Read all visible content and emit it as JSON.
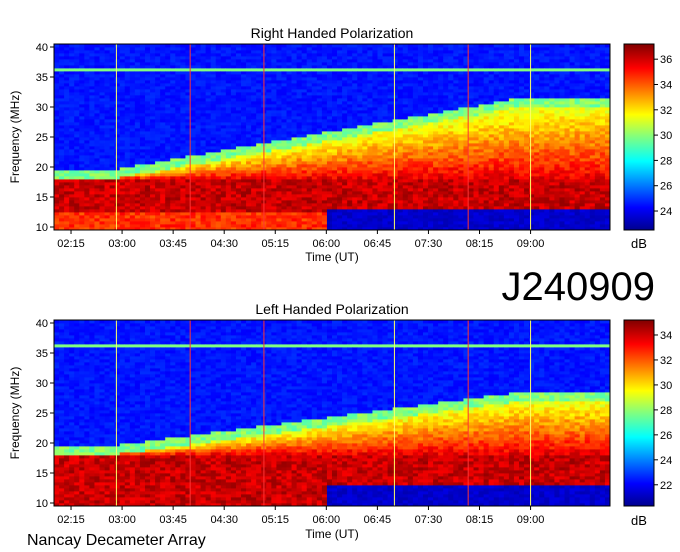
{
  "station_id": "J240909",
  "footer": "Nancay Decameter Array",
  "chart_data": [
    {
      "type": "heatmap",
      "title": "Right Handed Polarization",
      "xlabel": "Time (UT)",
      "ylabel": "Frequency (MHz)",
      "ylim": [
        9.5,
        40.5
      ],
      "xlim_minutes_utc": [
        120,
        610
      ],
      "x_ticks": [
        "02:15",
        "03:00",
        "03:45",
        "04:30",
        "05:15",
        "06:00",
        "06:45",
        "07:30",
        "08:15",
        "09:00"
      ],
      "y_ticks": [
        10,
        15,
        20,
        25,
        30,
        35,
        40
      ],
      "colorbar": {
        "unit": "dB",
        "min": 22.5,
        "max": 37.2,
        "ticks": [
          24,
          26,
          28,
          30,
          32,
          34,
          36
        ]
      },
      "marker_lines_utc": [
        "02:55",
        "04:00",
        "05:05",
        "07:00",
        "08:05",
        "09:00"
      ],
      "intensity_summary": "Strong emission (~36 dB) below 18 MHz across the whole interval; emission band rising from ~18 MHz near 03:00 to ~30 MHz after 08:00; background ~24 dB above; low-level (~23 dB) below 13 MHz after 06:00"
    },
    {
      "type": "heatmap",
      "title": "Left Handed Polarization",
      "xlabel": "Time (UT)",
      "ylabel": "Frequency (MHz)",
      "ylim": [
        9.5,
        40.5
      ],
      "xlim_minutes_utc": [
        120,
        610
      ],
      "x_ticks": [
        "02:15",
        "03:00",
        "03:45",
        "04:30",
        "05:15",
        "06:00",
        "06:45",
        "07:30",
        "08:15",
        "09:00"
      ],
      "y_ticks": [
        10,
        15,
        20,
        25,
        30,
        35,
        40
      ],
      "colorbar": {
        "unit": "dB",
        "min": 20.3,
        "max": 35.2,
        "ticks": [
          22,
          24,
          26,
          28,
          30,
          32,
          34
        ]
      },
      "marker_lines_utc": [
        "02:55",
        "04:00",
        "05:05",
        "07:00",
        "08:05",
        "09:00"
      ],
      "intensity_summary": "Strong emission (~34 dB) below 18 MHz; emission band rising to ~25-28 MHz after 07:00; background ~23 dB above; low-level (~21 dB) below 13 MHz after 06:00"
    }
  ]
}
